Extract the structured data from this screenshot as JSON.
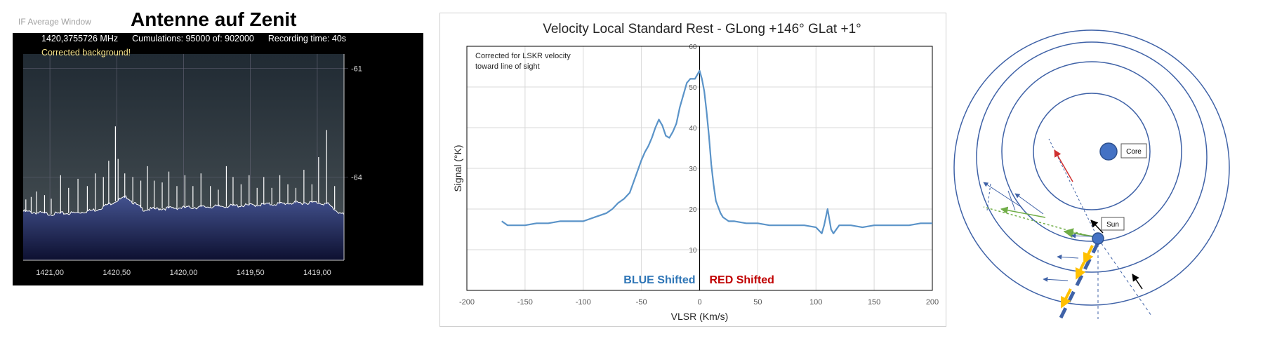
{
  "colors": {
    "sdr_background": "#000000",
    "sdr_fill_top": "#445390",
    "sdr_fill_bottom": "#0d1030",
    "sdr_trace": "#ffffff",
    "sdr_info_text": "#f5e28a",
    "chart_line": "#5a93c8",
    "blue_label": "#2e75b6",
    "red_label": "#c00000",
    "orbit": "#3f62a7",
    "core_fill": "#4472c4",
    "arrow_red": "#d03030",
    "arrow_green": "#70ad47",
    "arrow_orange": "#ffc000"
  },
  "left_panel": {
    "window_title": "IF Average Window",
    "main_title": "Antenne auf Zenit",
    "frequency": "1420,3755726 MHz",
    "cumulations": "Cumulations: 95000 of: 902000",
    "recording_time": "Recording time: 40s",
    "status": "Corrected background!",
    "chart_data": {
      "type": "area",
      "x_ticks": [
        "1421,00",
        "1420,50",
        "1420,00",
        "1419,50",
        "1419,00"
      ],
      "x_tick_values": [
        1421.0,
        1420.5,
        1420.0,
        1419.5,
        1419.0
      ],
      "xlim": [
        1421.2,
        1418.8
      ],
      "y_ticks": [
        "-61",
        "-64"
      ],
      "y_tick_values": [
        -61,
        -64
      ],
      "ylim": [
        -66.3,
        -60.6
      ],
      "grid": true,
      "baseline": [
        [
          1421.2,
          -64.95
        ],
        [
          1421.0,
          -65.02
        ],
        [
          1420.8,
          -64.99
        ],
        [
          1420.65,
          -64.9
        ],
        [
          1420.5,
          -64.65
        ],
        [
          1420.42,
          -64.55
        ],
        [
          1420.38,
          -64.7
        ],
        [
          1420.3,
          -64.9
        ],
        [
          1420.1,
          -64.86
        ],
        [
          1419.8,
          -64.82
        ],
        [
          1419.5,
          -64.78
        ],
        [
          1419.2,
          -64.72
        ],
        [
          1419.0,
          -64.7
        ],
        [
          1418.92,
          -64.75
        ],
        [
          1418.85,
          -64.95
        ],
        [
          1418.8,
          -65.05
        ]
      ],
      "spikes": [
        [
          1421.18,
          -64.62
        ],
        [
          1421.14,
          -64.55
        ],
        [
          1421.1,
          -64.4
        ],
        [
          1421.04,
          -64.5
        ],
        [
          1420.99,
          -64.6
        ],
        [
          1420.92,
          -63.95
        ],
        [
          1420.86,
          -64.3
        ],
        [
          1420.79,
          -64.05
        ],
        [
          1420.72,
          -64.25
        ],
        [
          1420.66,
          -63.9
        ],
        [
          1420.6,
          -64.0
        ],
        [
          1420.56,
          -63.55
        ],
        [
          1420.51,
          -62.6
        ],
        [
          1420.49,
          -63.5
        ],
        [
          1420.44,
          -63.9
        ],
        [
          1420.38,
          -64.0
        ],
        [
          1420.32,
          -64.1
        ],
        [
          1420.27,
          -63.7
        ],
        [
          1420.22,
          -64.1
        ],
        [
          1420.16,
          -64.15
        ],
        [
          1420.11,
          -63.85
        ],
        [
          1420.05,
          -64.25
        ],
        [
          1419.99,
          -63.95
        ],
        [
          1419.93,
          -64.25
        ],
        [
          1419.87,
          -63.9
        ],
        [
          1419.8,
          -64.25
        ],
        [
          1419.74,
          -64.35
        ],
        [
          1419.68,
          -63.7
        ],
        [
          1419.63,
          -64.0
        ],
        [
          1419.57,
          -64.2
        ],
        [
          1419.51,
          -63.95
        ],
        [
          1419.45,
          -64.3
        ],
        [
          1419.4,
          -64.0
        ],
        [
          1419.34,
          -64.3
        ],
        [
          1419.28,
          -63.95
        ],
        [
          1419.22,
          -64.2
        ],
        [
          1419.16,
          -64.3
        ],
        [
          1419.1,
          -63.8
        ],
        [
          1419.04,
          -64.2
        ],
        [
          1418.99,
          -63.45
        ],
        [
          1418.93,
          -62.7
        ],
        [
          1418.87,
          -64.25
        ]
      ]
    }
  },
  "chart_data": {
    "type": "line",
    "title": "Velocity Local Standard Rest - GLong +146° GLat +1°",
    "xlabel": "VLSR (Km/s)",
    "ylabel": "Signal (°K)",
    "xlim": [
      -200,
      200
    ],
    "ylim": [
      0,
      60
    ],
    "x_ticks": [
      -200,
      -150,
      -100,
      -50,
      0,
      50,
      100,
      150,
      200
    ],
    "y_ticks": [
      10,
      20,
      30,
      40,
      50,
      60
    ],
    "grid": true,
    "annotation": "Corrected for LSKR velocity\ntoward line of sight",
    "blue_label": "BLUE Shifted",
    "red_label": "RED Shifted",
    "series": [
      {
        "x": [
          -170,
          -165,
          -160,
          -150,
          -140,
          -130,
          -120,
          -110,
          -100,
          -95,
          -90,
          -85,
          -80,
          -75,
          -70,
          -65,
          -60,
          -55,
          -50,
          -47,
          -44,
          -41,
          -38,
          -35,
          -32,
          -29,
          -26,
          -23,
          -20,
          -17,
          -14,
          -11,
          -8,
          -6,
          -4,
          -2,
          0,
          2,
          4,
          6,
          8,
          10,
          12,
          14,
          16,
          18,
          20,
          25,
          30,
          40,
          50,
          60,
          70,
          80,
          90,
          100,
          105,
          107,
          110,
          113,
          115,
          120,
          130,
          140,
          150,
          160,
          170,
          180,
          190,
          200
        ],
        "values": [
          17,
          16,
          16,
          16,
          16.5,
          16.5,
          17,
          17,
          17,
          17.5,
          18,
          18.5,
          19,
          20,
          21.5,
          22.5,
          24,
          28,
          32,
          34,
          35.5,
          37.5,
          40,
          42,
          40.5,
          38,
          37.5,
          39,
          41,
          45,
          48,
          51,
          52,
          52,
          52,
          53,
          54,
          52,
          49,
          44,
          38,
          31,
          26,
          22,
          20.5,
          19,
          18,
          17,
          17,
          16.5,
          16.5,
          16,
          16,
          16,
          16,
          15.5,
          14,
          16,
          20,
          15,
          14,
          16,
          16,
          15.5,
          16,
          16,
          16,
          16,
          16.5,
          16.5
        ]
      }
    ]
  },
  "right_panel": {
    "core_label": "Core",
    "sun_label": "Sun"
  }
}
